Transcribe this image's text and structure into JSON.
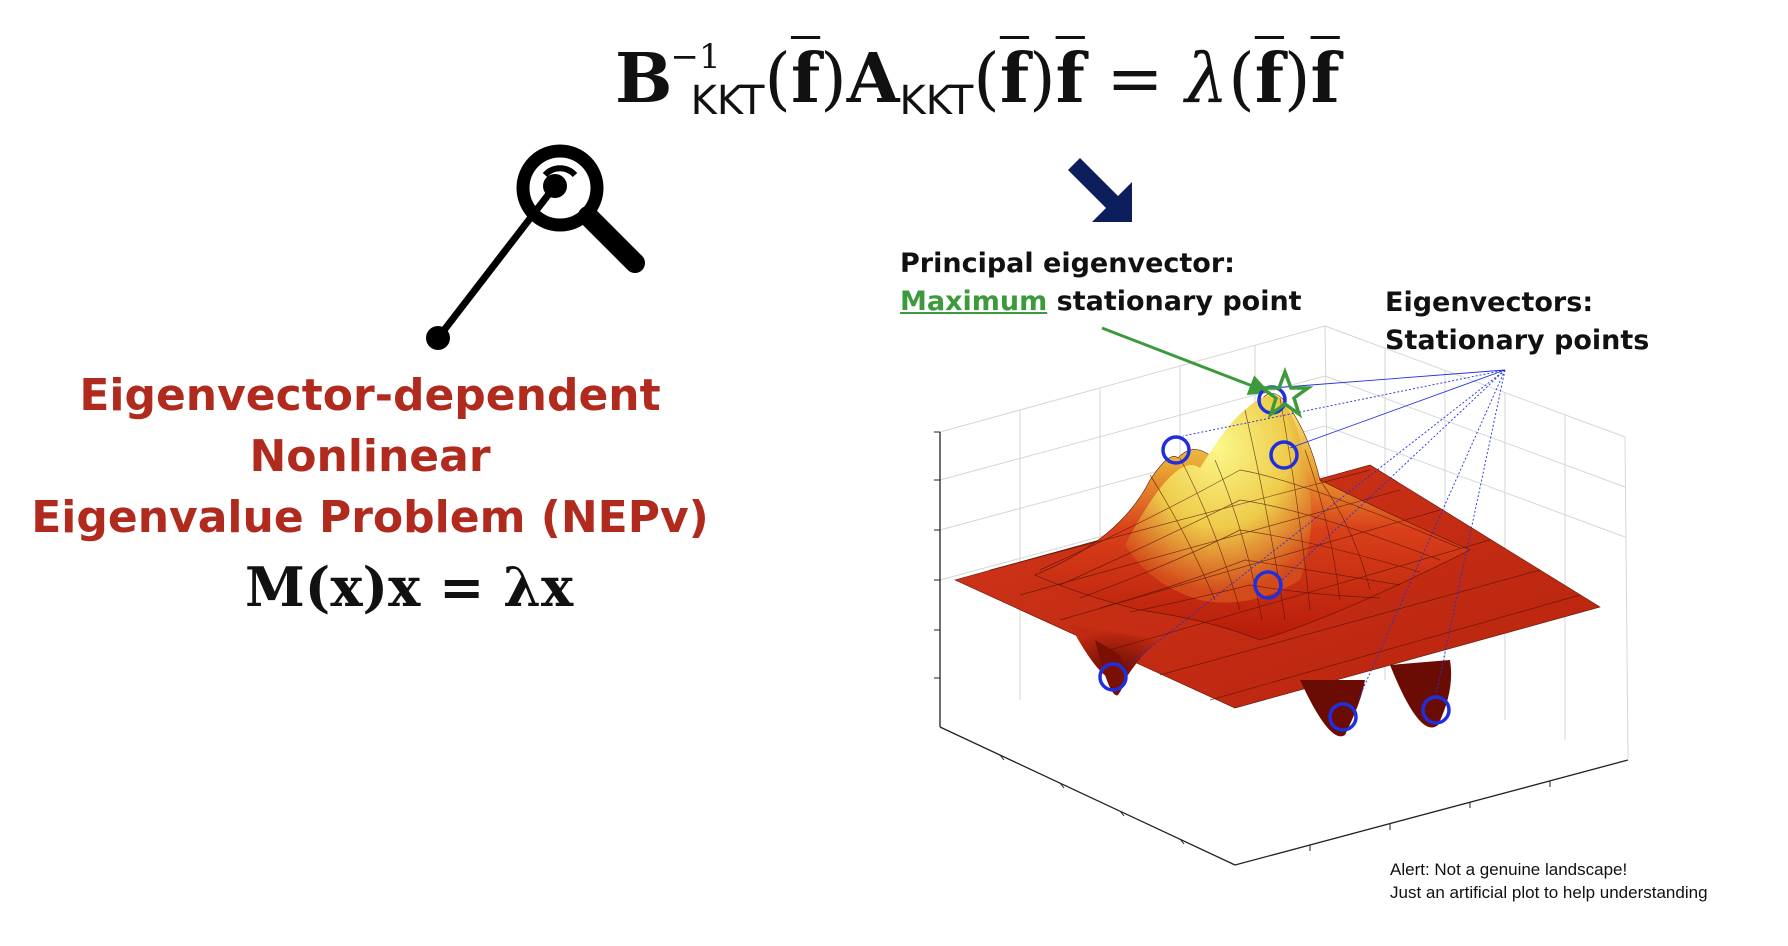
{
  "top_equation": {
    "B": "B",
    "sup": "−1",
    "sub1": "KKT",
    "lp1": "(",
    "f1": "f",
    "rp1": ")",
    "A": "A",
    "sub2": "KKT",
    "lp2": "(",
    "f2": "f",
    "rp2": ")",
    "f3": "f",
    "eq": " = ",
    "lambda": "λ",
    "lp3": "(",
    "f4": "f",
    "rp3": ")",
    "f5": "f"
  },
  "nepv": {
    "line1": "Eigenvector-dependent",
    "line2": "Nonlinear",
    "line3": "Eigenvalue Problem (NEPv)",
    "equation": "M(x)x = λx"
  },
  "principal_label": {
    "line1": "Principal eigenvector:",
    "maximum": "Maximum",
    "rest": " stationary point"
  },
  "eigvec_label": {
    "line1": "Eigenvectors:",
    "line2": "Stationary points"
  },
  "alert": {
    "line1": "Alert: Not a genuine landscape!",
    "line2": "Just an artificial plot to help understanding"
  },
  "colors": {
    "title_red": "#b12a1e",
    "maximum_green": "#3c9a3c",
    "arrow_navy": "#0c1f5c",
    "marker_blue": "#1f2fe0",
    "surface_low": "#c8240e",
    "surface_high": "#f6f47a"
  },
  "icons": [
    "magnifier-icon",
    "down-right-arrow-icon",
    "star-marker-icon",
    "circle-marker-icon"
  ]
}
